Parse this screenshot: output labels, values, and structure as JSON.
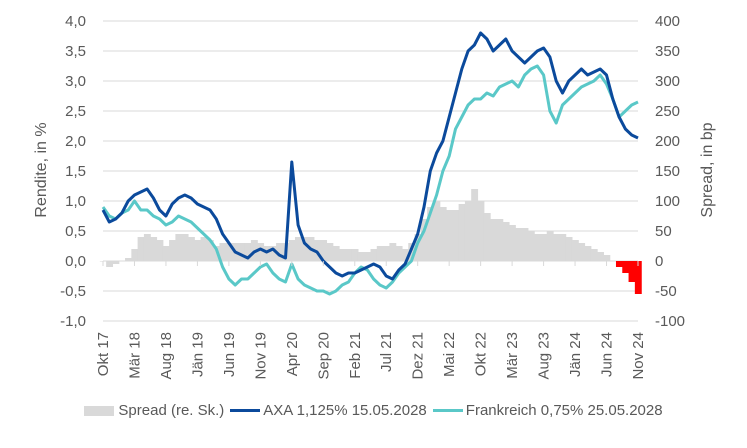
{
  "chart_data": {
    "type": "line",
    "title": "",
    "ylabel_left": "Rendite, in %",
    "ylabel_right": "Spread, in bp",
    "ylim_left": [
      -1.0,
      4.0
    ],
    "ylim_right": [
      -100,
      400
    ],
    "yticks_left": [
      "4,0",
      "3,5",
      "3,0",
      "2,5",
      "2,0",
      "1,5",
      "1,0",
      "0,5",
      "0,0",
      "-0,5",
      "-1,0"
    ],
    "yticks_right": [
      "400",
      "350",
      "300",
      "250",
      "200",
      "150",
      "100",
      "50",
      "0",
      "-50",
      "-100"
    ],
    "grid": true,
    "xtick_labels": [
      "Okt 17",
      "Mär 18",
      "Aug 18",
      "Jän 19",
      "Jun 19",
      "Nov 19",
      "Apr 20",
      "Sep 20",
      "Feb 21",
      "Jul 21",
      "Dez 21",
      "Mai 22",
      "Okt 22",
      "Mär 23",
      "Aug 23",
      "Jän 24",
      "Jun 24",
      "Nov 24"
    ],
    "x_months": 86,
    "series": [
      {
        "name": "AXA 1,125% 15.05.2028",
        "kind": "line",
        "color": "#0b4a9c",
        "values": [
          0.85,
          0.65,
          0.7,
          0.8,
          1.0,
          1.1,
          1.15,
          1.2,
          1.05,
          0.85,
          0.75,
          0.95,
          1.05,
          1.1,
          1.05,
          0.95,
          0.9,
          0.85,
          0.7,
          0.45,
          0.3,
          0.15,
          0.1,
          0.05,
          0.15,
          0.2,
          0.15,
          0.2,
          0.1,
          0.05,
          1.65,
          0.6,
          0.3,
          0.2,
          0.15,
          0.0,
          -0.1,
          -0.2,
          -0.25,
          -0.2,
          -0.2,
          -0.15,
          -0.1,
          -0.05,
          -0.1,
          -0.25,
          -0.3,
          -0.15,
          -0.05,
          0.2,
          0.45,
          0.9,
          1.5,
          1.8,
          2.0,
          2.4,
          2.8,
          3.2,
          3.5,
          3.6,
          3.8,
          3.7,
          3.5,
          3.6,
          3.7,
          3.5,
          3.4,
          3.3,
          3.4,
          3.5,
          3.55,
          3.4,
          3.0,
          2.8,
          3.0,
          3.1,
          3.2,
          3.1,
          3.15,
          3.2,
          3.1,
          2.7,
          2.4,
          2.2,
          2.1,
          2.05
        ]
      },
      {
        "name": "Frankreich 0,75% 25.05.2028",
        "kind": "line",
        "color": "#5ac8c8",
        "values": [
          0.9,
          0.75,
          0.7,
          0.8,
          0.85,
          1.0,
          0.85,
          0.85,
          0.75,
          0.7,
          0.6,
          0.65,
          0.75,
          0.7,
          0.65,
          0.55,
          0.45,
          0.35,
          0.2,
          -0.1,
          -0.3,
          -0.4,
          -0.3,
          -0.3,
          -0.2,
          -0.1,
          -0.05,
          -0.2,
          -0.3,
          -0.35,
          -0.05,
          -0.3,
          -0.4,
          -0.45,
          -0.5,
          -0.5,
          -0.55,
          -0.5,
          -0.4,
          -0.35,
          -0.2,
          -0.1,
          -0.15,
          -0.3,
          -0.4,
          -0.45,
          -0.35,
          -0.2,
          -0.1,
          0.0,
          0.3,
          0.5,
          0.8,
          1.1,
          1.5,
          1.75,
          2.2,
          2.4,
          2.6,
          2.7,
          2.7,
          2.8,
          2.75,
          2.9,
          2.95,
          3.0,
          2.9,
          3.1,
          3.2,
          3.25,
          3.1,
          2.5,
          2.3,
          2.6,
          2.7,
          2.8,
          2.9,
          2.95,
          3.0,
          3.1,
          2.95,
          2.7,
          2.4,
          2.5,
          2.6,
          2.65
        ]
      },
      {
        "name": "Spread (re. Sk.)",
        "kind": "area",
        "axis": "right",
        "color_positive": "#d9d9d9",
        "color_negative": "#ff0000",
        "values": [
          0,
          -10,
          -5,
          0,
          5,
          20,
          40,
          45,
          40,
          35,
          25,
          35,
          45,
          45,
          40,
          35,
          40,
          35,
          25,
          30,
          30,
          30,
          30,
          30,
          35,
          30,
          25,
          25,
          30,
          30,
          35,
          40,
          40,
          40,
          35,
          35,
          30,
          25,
          20,
          20,
          20,
          15,
          15,
          20,
          25,
          25,
          30,
          25,
          20,
          30,
          45,
          70,
          90,
          100,
          90,
          85,
          85,
          95,
          100,
          120,
          100,
          80,
          70,
          70,
          65,
          60,
          55,
          55,
          50,
          45,
          45,
          50,
          45,
          45,
          40,
          35,
          30,
          25,
          20,
          15,
          10,
          0,
          -10,
          -20,
          -35,
          -55
        ]
      }
    ],
    "legend": {
      "position": "bottom",
      "entries": [
        "Spread (re. Sk.)",
        "AXA 1,125% 15.05.2028",
        "Frankreich 0,75% 25.05.2028"
      ]
    }
  }
}
